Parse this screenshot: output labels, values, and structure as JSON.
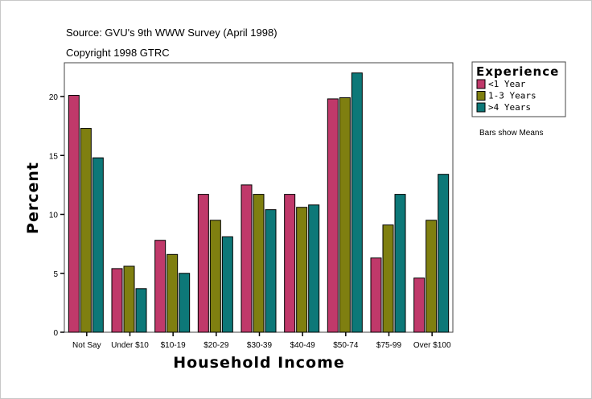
{
  "chart_data": {
    "type": "bar",
    "title": "Source: GVU's 9th WWW Survey (April 1998)",
    "subtitle": "Copyright 1998 GTRC",
    "xlabel": "Household Income",
    "ylabel": "Percent",
    "ylim": [
      0,
      22.8
    ],
    "yticks": [
      0,
      5,
      10,
      15,
      20
    ],
    "grid": false,
    "legend_position": "right",
    "legend_title": "Experience",
    "note": "Bars show Means",
    "categories": [
      "Not Say",
      "Under $10",
      "$10-19",
      "$20-29",
      "$30-39",
      "$40-49",
      "$50-74",
      "$75-99",
      "Over $100"
    ],
    "series": [
      {
        "name": "<1 Year",
        "color": "#c0396a",
        "values": [
          20.1,
          5.4,
          7.8,
          11.7,
          12.5,
          11.7,
          19.8,
          6.3,
          4.6
        ]
      },
      {
        "name": "1-3 Years",
        "color": "#7f7f10",
        "values": [
          17.3,
          5.6,
          6.6,
          9.5,
          11.7,
          10.6,
          19.9,
          9.1,
          9.5
        ]
      },
      {
        "name": ">4 Years",
        "color": "#0d7878",
        "values": [
          14.8,
          3.7,
          5.0,
          8.1,
          10.4,
          10.8,
          22.0,
          11.7,
          13.4
        ]
      }
    ]
  }
}
